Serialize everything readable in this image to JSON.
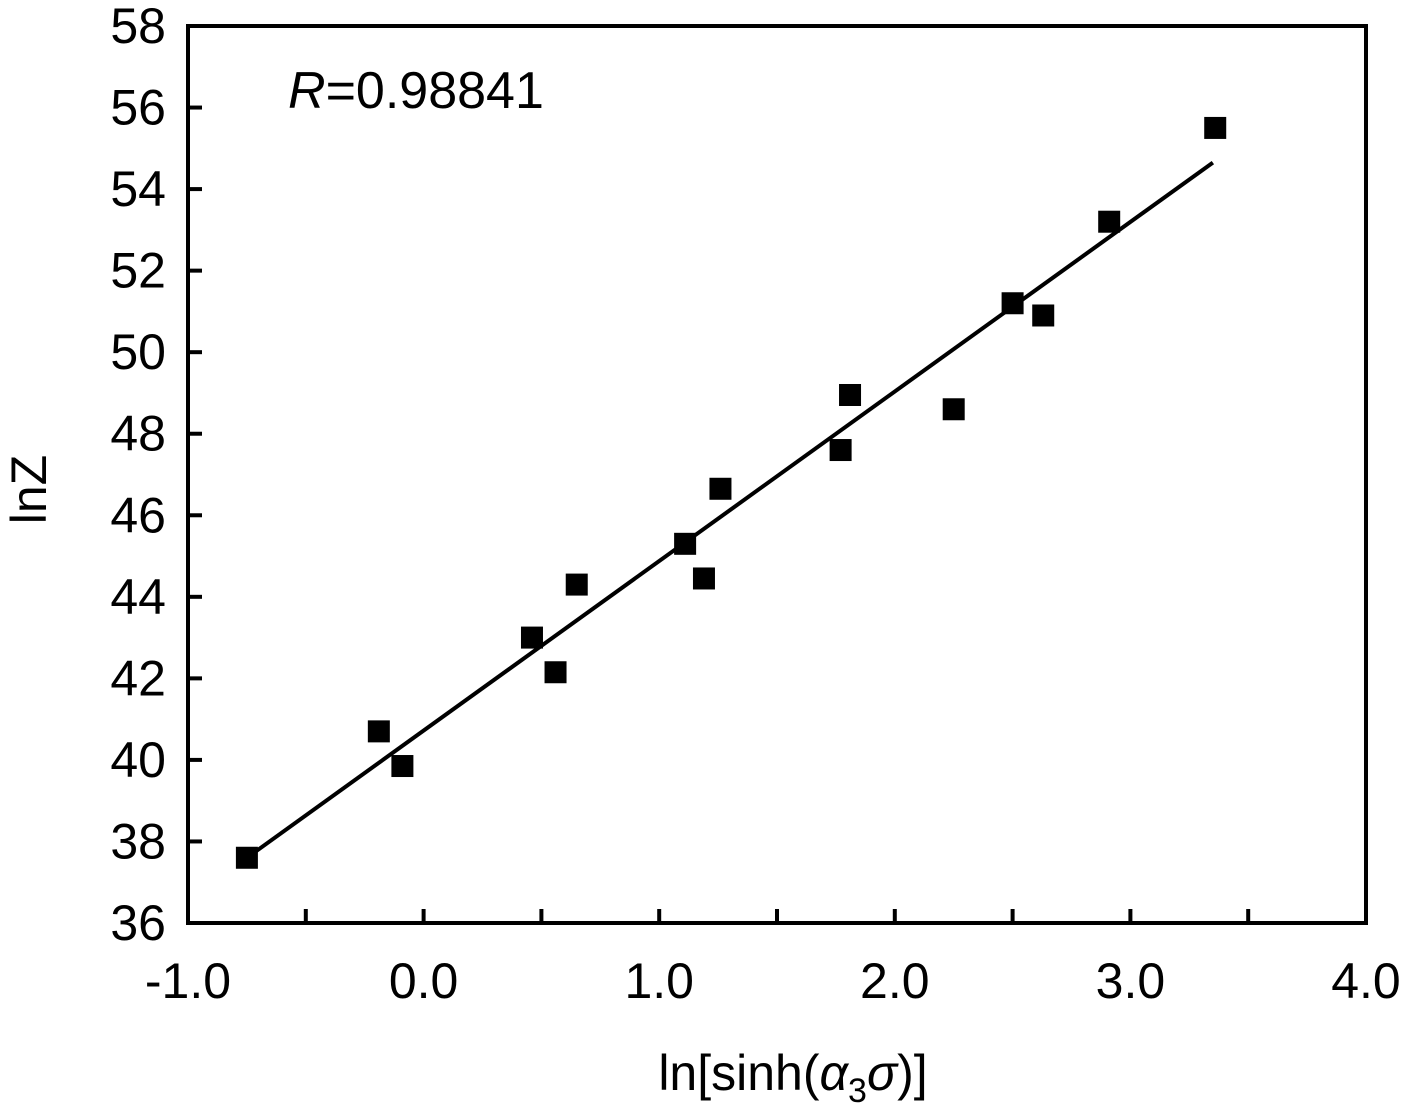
{
  "chart_data": {
    "type": "scatter",
    "title": "",
    "xlabel": {
      "prefix": "ln[sinh(",
      "alpha": "α",
      "alpha_sub": "3",
      "sigma": "σ",
      "suffix": ")]"
    },
    "ylabel": "lnZ",
    "xlim": [
      -1.0,
      4.0
    ],
    "ylim": [
      36,
      58
    ],
    "xticks": [
      -1.0,
      -0.5,
      0.0,
      0.5,
      1.0,
      1.5,
      2.0,
      2.5,
      3.0,
      3.5,
      4.0
    ],
    "xtick_labels": [
      {
        "value": -1.0,
        "label": "-1.0"
      },
      {
        "value": 0.0,
        "label": "0.0"
      },
      {
        "value": 1.0,
        "label": "1.0"
      },
      {
        "value": 2.0,
        "label": "2.0"
      },
      {
        "value": 3.0,
        "label": "3.0"
      },
      {
        "value": 4.0,
        "label": "4.0"
      }
    ],
    "yticks": [
      36,
      38,
      40,
      42,
      44,
      46,
      48,
      50,
      52,
      54,
      56,
      58
    ],
    "ytick_labels": [
      "36",
      "38",
      "40",
      "42",
      "44",
      "46",
      "48",
      "50",
      "52",
      "54",
      "56",
      "58"
    ],
    "series": [
      {
        "name": "data",
        "marker": "square",
        "color": "#000000",
        "points": [
          [
            -0.75,
            37.6
          ],
          [
            -0.19,
            40.7
          ],
          [
            -0.09,
            39.85
          ],
          [
            0.46,
            43.0
          ],
          [
            0.56,
            42.15
          ],
          [
            0.65,
            44.3
          ],
          [
            1.11,
            45.3
          ],
          [
            1.19,
            44.45
          ],
          [
            1.26,
            46.65
          ],
          [
            1.77,
            47.6
          ],
          [
            1.81,
            48.95
          ],
          [
            2.25,
            48.6
          ],
          [
            2.5,
            51.2
          ],
          [
            2.63,
            50.9
          ],
          [
            2.91,
            53.2
          ],
          [
            3.36,
            55.5
          ]
        ]
      }
    ],
    "fit_line": {
      "color": "#000000",
      "x": [
        -0.75,
        3.35
      ],
      "y": [
        37.6,
        54.65
      ]
    },
    "annotation": {
      "var": "R",
      "text": "=0.98841"
    },
    "grid": false,
    "legend": "none"
  }
}
